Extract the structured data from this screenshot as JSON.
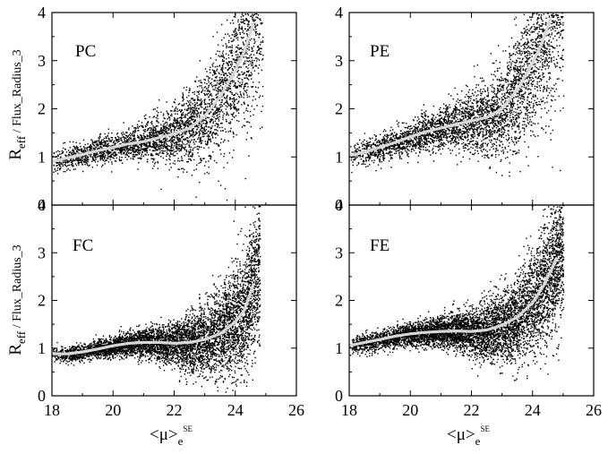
{
  "chart_data": {
    "type": "scatter",
    "layout": "2x2 grid, shared axes",
    "ylabel": {
      "main": "R",
      "sub": "eff",
      "rest": " / Flux_Radius_3"
    },
    "xlabel": {
      "main": "<μ>",
      "sub": "e",
      "sup": "SE"
    },
    "xlim": [
      18,
      26
    ],
    "ylim": [
      0,
      4
    ],
    "xticks": [
      18,
      20,
      22,
      24,
      26
    ],
    "yticks": [
      0,
      1,
      2,
      3,
      4
    ],
    "grid": false,
    "point_color": "#000000",
    "trend_color": "#d8d8d8",
    "panels": [
      {
        "label": "PC",
        "trend": {
          "x": [
            18.0,
            18.5,
            19.0,
            19.5,
            20.0,
            20.5,
            21.0,
            21.5,
            22.0,
            22.5,
            23.0,
            23.5,
            24.0,
            24.3,
            24.6
          ],
          "y": [
            0.9,
            0.98,
            1.05,
            1.13,
            1.2,
            1.27,
            1.32,
            1.4,
            1.48,
            1.6,
            1.85,
            2.25,
            2.8,
            3.2,
            3.8
          ]
        },
        "cloud": {
          "x_range": [
            18.0,
            24.9
          ],
          "count": 3500,
          "x_peak": 22.8,
          "base_spread": 0.12,
          "spread_growth": 0.9
        }
      },
      {
        "label": "PE",
        "trend": {
          "x": [
            18.0,
            18.5,
            19.0,
            19.5,
            20.0,
            20.5,
            21.0,
            21.5,
            22.0,
            22.5,
            23.0,
            23.5,
            24.0,
            24.3,
            24.6
          ],
          "y": [
            1.02,
            1.1,
            1.2,
            1.3,
            1.42,
            1.52,
            1.6,
            1.68,
            1.75,
            1.82,
            2.0,
            2.4,
            2.95,
            3.35,
            3.9
          ]
        },
        "cloud": {
          "x_range": [
            18.0,
            25.0
          ],
          "count": 4000,
          "x_peak": 22.8,
          "base_spread": 0.14,
          "spread_growth": 0.9
        }
      },
      {
        "label": "FC",
        "trend": {
          "x": [
            18.0,
            18.5,
            19.0,
            19.5,
            20.0,
            20.5,
            21.0,
            21.5,
            22.0,
            22.5,
            23.0,
            23.5,
            24.0,
            24.3,
            24.6
          ],
          "y": [
            0.88,
            0.88,
            0.92,
            0.98,
            1.05,
            1.1,
            1.12,
            1.12,
            1.1,
            1.12,
            1.18,
            1.3,
            1.55,
            1.8,
            2.35
          ]
        },
        "cloud": {
          "x_range": [
            18.0,
            24.8
          ],
          "count": 6000,
          "x_peak": 23.2,
          "base_spread": 0.08,
          "spread_growth": 0.7
        }
      },
      {
        "label": "FE",
        "trend": {
          "x": [
            18.0,
            18.5,
            19.0,
            19.5,
            20.0,
            20.5,
            21.0,
            21.5,
            22.0,
            22.5,
            23.0,
            23.5,
            24.0,
            24.4,
            24.8
          ],
          "y": [
            1.05,
            1.12,
            1.18,
            1.25,
            1.3,
            1.33,
            1.35,
            1.36,
            1.35,
            1.38,
            1.48,
            1.65,
            1.95,
            2.35,
            2.9
          ]
        },
        "cloud": {
          "x_range": [
            18.0,
            25.0
          ],
          "count": 6500,
          "x_peak": 23.2,
          "base_spread": 0.1,
          "spread_growth": 0.7
        }
      }
    ]
  }
}
